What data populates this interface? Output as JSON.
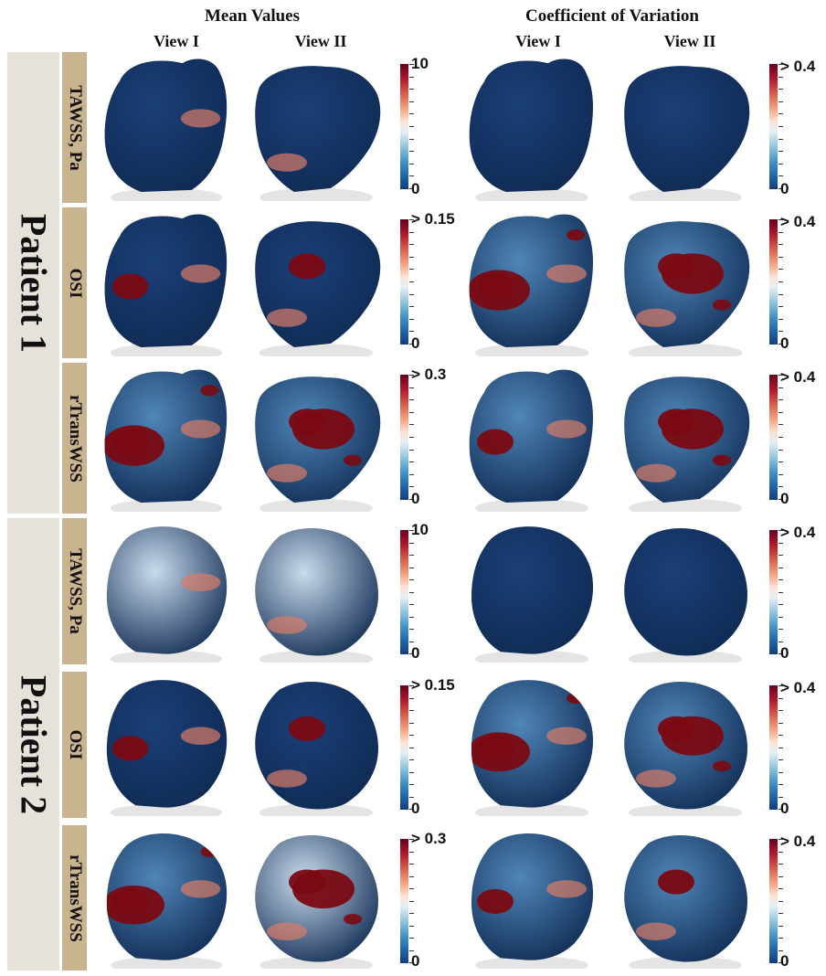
{
  "headers": {
    "mean_values": "Mean Values",
    "coefficient_of_variation": "Coefficient of Variation",
    "view_1": "View I",
    "view_2": "View II"
  },
  "patients": [
    "Patient 1",
    "Patient 2"
  ],
  "metrics": [
    "TAWSS, Pa",
    "OSI",
    "rTransWSS"
  ],
  "colorbar_labels": {
    "tawss_mean": {
      "max": "10",
      "min": "0"
    },
    "osi_mean": {
      "max": "> 0.15",
      "min": "0"
    },
    "rtranswss_mean": {
      "max": "> 0.3",
      "min": "0"
    },
    "cov": {
      "max": "> 0.4",
      "min": "0"
    }
  },
  "colors": {
    "low": "#1b3f78",
    "high": "#7a0a12",
    "patient_band": "#e6e2da",
    "metric_band": "#c8b48e"
  }
}
